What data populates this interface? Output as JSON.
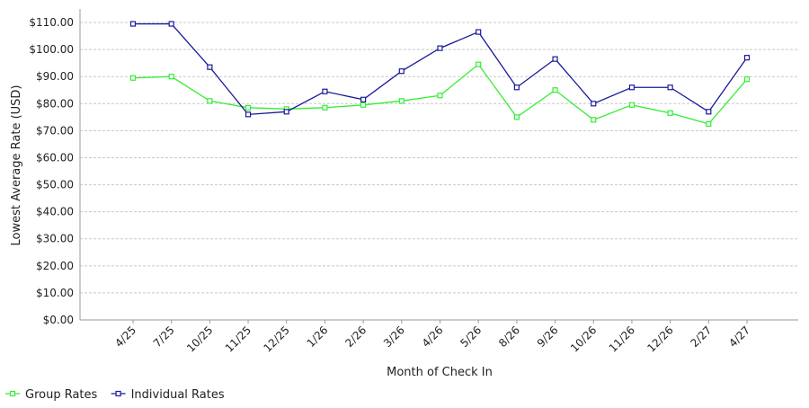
{
  "chart_data": {
    "type": "line",
    "xlabel": "Month of Check In",
    "ylabel": "Lowest Average Rate (USD)",
    "ylim": [
      0,
      115
    ],
    "yticks": [
      "$0.00",
      "$10.00",
      "$20.00",
      "$30.00",
      "$40.00",
      "$50.00",
      "$60.00",
      "$70.00",
      "$80.00",
      "$90.00",
      "$100.00",
      "$110.00"
    ],
    "grid": true,
    "legend_position": "bottom-left",
    "categories": [
      "4/25",
      "7/25",
      "10/25",
      "11/25",
      "12/25",
      "1/26",
      "2/26",
      "3/26",
      "4/26",
      "5/26",
      "8/26",
      "9/26",
      "10/26",
      "11/26",
      "12/26",
      "2/27",
      "4/27"
    ],
    "series": [
      {
        "name": "Group Rates",
        "color": "#33ee33",
        "values": [
          89.5,
          90.0,
          81.0,
          78.5,
          78.0,
          78.5,
          79.5,
          81.0,
          83.0,
          94.5,
          75.0,
          85.0,
          74.0,
          79.5,
          76.5,
          72.5,
          89.0
        ]
      },
      {
        "name": "Individual Rates",
        "color": "#1a1a99",
        "values": [
          109.5,
          109.5,
          93.5,
          76.0,
          77.0,
          84.5,
          81.5,
          92.0,
          100.5,
          106.5,
          86.0,
          96.5,
          80.0,
          86.0,
          86.0,
          77.0,
          97.0
        ]
      }
    ]
  }
}
